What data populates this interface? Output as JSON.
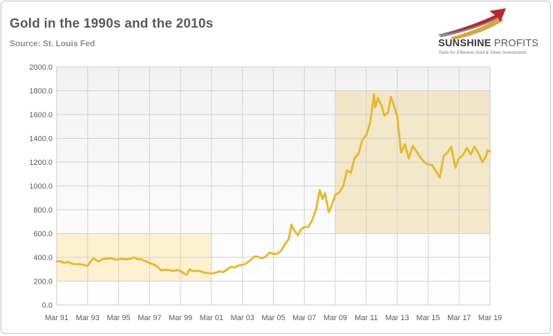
{
  "header": {
    "title": "Gold in the 1990s and the 2010s",
    "subtitle": "Source: St. Louis Fed"
  },
  "logo": {
    "name_bold": "SUNSHINE",
    "name_light": "PROFITS",
    "tagline": "Tools for Effective Gold & Silver Investments",
    "colors": {
      "swoosh_red": "#b8282c",
      "swoosh_gray": "#8c8c8c",
      "swoosh_gold": "#d9a441"
    }
  },
  "chart_data": {
    "type": "line",
    "title": "Gold in the 1990s and the 2010s",
    "subtitle": "Source: St. Louis Fed",
    "xlabel": "",
    "ylabel": "",
    "xlim": [
      "1991-03",
      "2019-03"
    ],
    "ylim": [
      0,
      2000
    ],
    "y_ticks": [
      "0.0",
      "200.0",
      "400.0",
      "600.0",
      "800.0",
      "1000.0",
      "1200.0",
      "1400.0",
      "1600.0",
      "1800.0",
      "2000.0"
    ],
    "x_ticks": [
      {
        "label": "Mar 91",
        "date": "1991-03"
      },
      {
        "label": "Mar 93",
        "date": "1993-03"
      },
      {
        "label": "Mar 95",
        "date": "1995-03"
      },
      {
        "label": "Mar 97",
        "date": "1997-03"
      },
      {
        "label": "Mar 99",
        "date": "1999-03"
      },
      {
        "label": "Mar 01",
        "date": "2001-03"
      },
      {
        "label": "Mar 03",
        "date": "2003-03"
      },
      {
        "label": "Mar 05",
        "date": "2005-03"
      },
      {
        "label": "Mar 07",
        "date": "2007-03"
      },
      {
        "label": "Mar 09",
        "date": "2009-03"
      },
      {
        "label": "Mar 11",
        "date": "2011-03"
      },
      {
        "label": "Mar 13",
        "date": "2013-03"
      },
      {
        "label": "Mar 15",
        "date": "2015-03"
      },
      {
        "label": "Mar 17",
        "date": "2017-03"
      },
      {
        "label": "Mar 19",
        "date": "2019-03"
      }
    ],
    "grid": true,
    "legend": "none",
    "line_color": "#e6b830",
    "highlight_regions": [
      {
        "x_start": "1991-03",
        "x_end": "2001-03",
        "y_start": 200,
        "y_end": 600,
        "fill": "#fbeec2",
        "stroke": "#e8cf7a"
      },
      {
        "x_start": "2009-03",
        "x_end": "2019-03",
        "y_start": 600,
        "y_end": 1800,
        "fill": "#f0e2b8",
        "stroke": "#e0c780"
      }
    ],
    "series": [
      {
        "name": "",
        "points": [
          [
            "1991-03",
            365
          ],
          [
            "1991-06",
            368
          ],
          [
            "1991-09",
            352
          ],
          [
            "1991-12",
            362
          ],
          [
            "1992-03",
            345
          ],
          [
            "1992-06",
            342
          ],
          [
            "1992-09",
            343
          ],
          [
            "1992-12",
            335
          ],
          [
            "1993-03",
            330
          ],
          [
            "1993-06",
            375
          ],
          [
            "1993-08",
            390
          ],
          [
            "1993-11",
            365
          ],
          [
            "1994-03",
            385
          ],
          [
            "1994-06",
            388
          ],
          [
            "1994-09",
            393
          ],
          [
            "1994-12",
            380
          ],
          [
            "1995-03",
            383
          ],
          [
            "1995-06",
            388
          ],
          [
            "1995-09",
            384
          ],
          [
            "1995-12",
            388
          ],
          [
            "1996-03",
            398
          ],
          [
            "1996-06",
            385
          ],
          [
            "1996-09",
            382
          ],
          [
            "1996-12",
            368
          ],
          [
            "1997-03",
            352
          ],
          [
            "1997-06",
            341
          ],
          [
            "1997-09",
            323
          ],
          [
            "1997-12",
            290
          ],
          [
            "1998-03",
            296
          ],
          [
            "1998-06",
            294
          ],
          [
            "1998-09",
            285
          ],
          [
            "1998-12",
            292
          ],
          [
            "1999-03",
            287
          ],
          [
            "1999-06",
            262
          ],
          [
            "1999-08",
            255
          ],
          [
            "1999-10",
            300
          ],
          [
            "1999-12",
            285
          ],
          [
            "2000-03",
            285
          ],
          [
            "2000-06",
            285
          ],
          [
            "2000-09",
            273
          ],
          [
            "2000-12",
            268
          ],
          [
            "2001-03",
            265
          ],
          [
            "2001-06",
            270
          ],
          [
            "2001-09",
            282
          ],
          [
            "2001-12",
            276
          ],
          [
            "2002-03",
            295
          ],
          [
            "2002-06",
            320
          ],
          [
            "2002-09",
            315
          ],
          [
            "2002-12",
            332
          ],
          [
            "2003-03",
            335
          ],
          [
            "2003-06",
            350
          ],
          [
            "2003-09",
            375
          ],
          [
            "2003-12",
            405
          ],
          [
            "2004-03",
            406
          ],
          [
            "2004-06",
            392
          ],
          [
            "2004-09",
            405
          ],
          [
            "2004-12",
            440
          ],
          [
            "2005-03",
            428
          ],
          [
            "2005-06",
            430
          ],
          [
            "2005-09",
            455
          ],
          [
            "2005-12",
            510
          ],
          [
            "2006-03",
            556
          ],
          [
            "2006-05",
            675
          ],
          [
            "2006-07",
            630
          ],
          [
            "2006-10",
            585
          ],
          [
            "2006-12",
            630
          ],
          [
            "2007-03",
            655
          ],
          [
            "2007-06",
            655
          ],
          [
            "2007-09",
            712
          ],
          [
            "2007-12",
            800
          ],
          [
            "2008-03",
            965
          ],
          [
            "2008-05",
            890
          ],
          [
            "2008-07",
            940
          ],
          [
            "2008-10",
            780
          ],
          [
            "2008-12",
            830
          ],
          [
            "2009-03",
            925
          ],
          [
            "2009-06",
            945
          ],
          [
            "2009-09",
            995
          ],
          [
            "2009-12",
            1130
          ],
          [
            "2010-03",
            1110
          ],
          [
            "2010-06",
            1235
          ],
          [
            "2010-09",
            1270
          ],
          [
            "2010-12",
            1390
          ],
          [
            "2011-03",
            1425
          ],
          [
            "2011-06",
            1530
          ],
          [
            "2011-09",
            1770
          ],
          [
            "2011-10",
            1660
          ],
          [
            "2011-12",
            1740
          ],
          [
            "2012-03",
            1670
          ],
          [
            "2012-05",
            1590
          ],
          [
            "2012-08",
            1620
          ],
          [
            "2012-10",
            1750
          ],
          [
            "2012-12",
            1690
          ],
          [
            "2013-03",
            1590
          ],
          [
            "2013-06",
            1280
          ],
          [
            "2013-09",
            1350
          ],
          [
            "2013-12",
            1230
          ],
          [
            "2014-03",
            1335
          ],
          [
            "2014-06",
            1290
          ],
          [
            "2014-09",
            1240
          ],
          [
            "2014-12",
            1200
          ],
          [
            "2015-03",
            1180
          ],
          [
            "2015-06",
            1175
          ],
          [
            "2015-09",
            1125
          ],
          [
            "2015-12",
            1070
          ],
          [
            "2016-03",
            1250
          ],
          [
            "2016-06",
            1280
          ],
          [
            "2016-09",
            1330
          ],
          [
            "2016-12",
            1155
          ],
          [
            "2017-03",
            1235
          ],
          [
            "2017-06",
            1260
          ],
          [
            "2017-09",
            1320
          ],
          [
            "2017-12",
            1265
          ],
          [
            "2018-03",
            1330
          ],
          [
            "2018-06",
            1275
          ],
          [
            "2018-09",
            1200
          ],
          [
            "2018-12",
            1250
          ],
          [
            "2019-01",
            1300
          ],
          [
            "2019-03",
            1290
          ]
        ]
      }
    ]
  }
}
